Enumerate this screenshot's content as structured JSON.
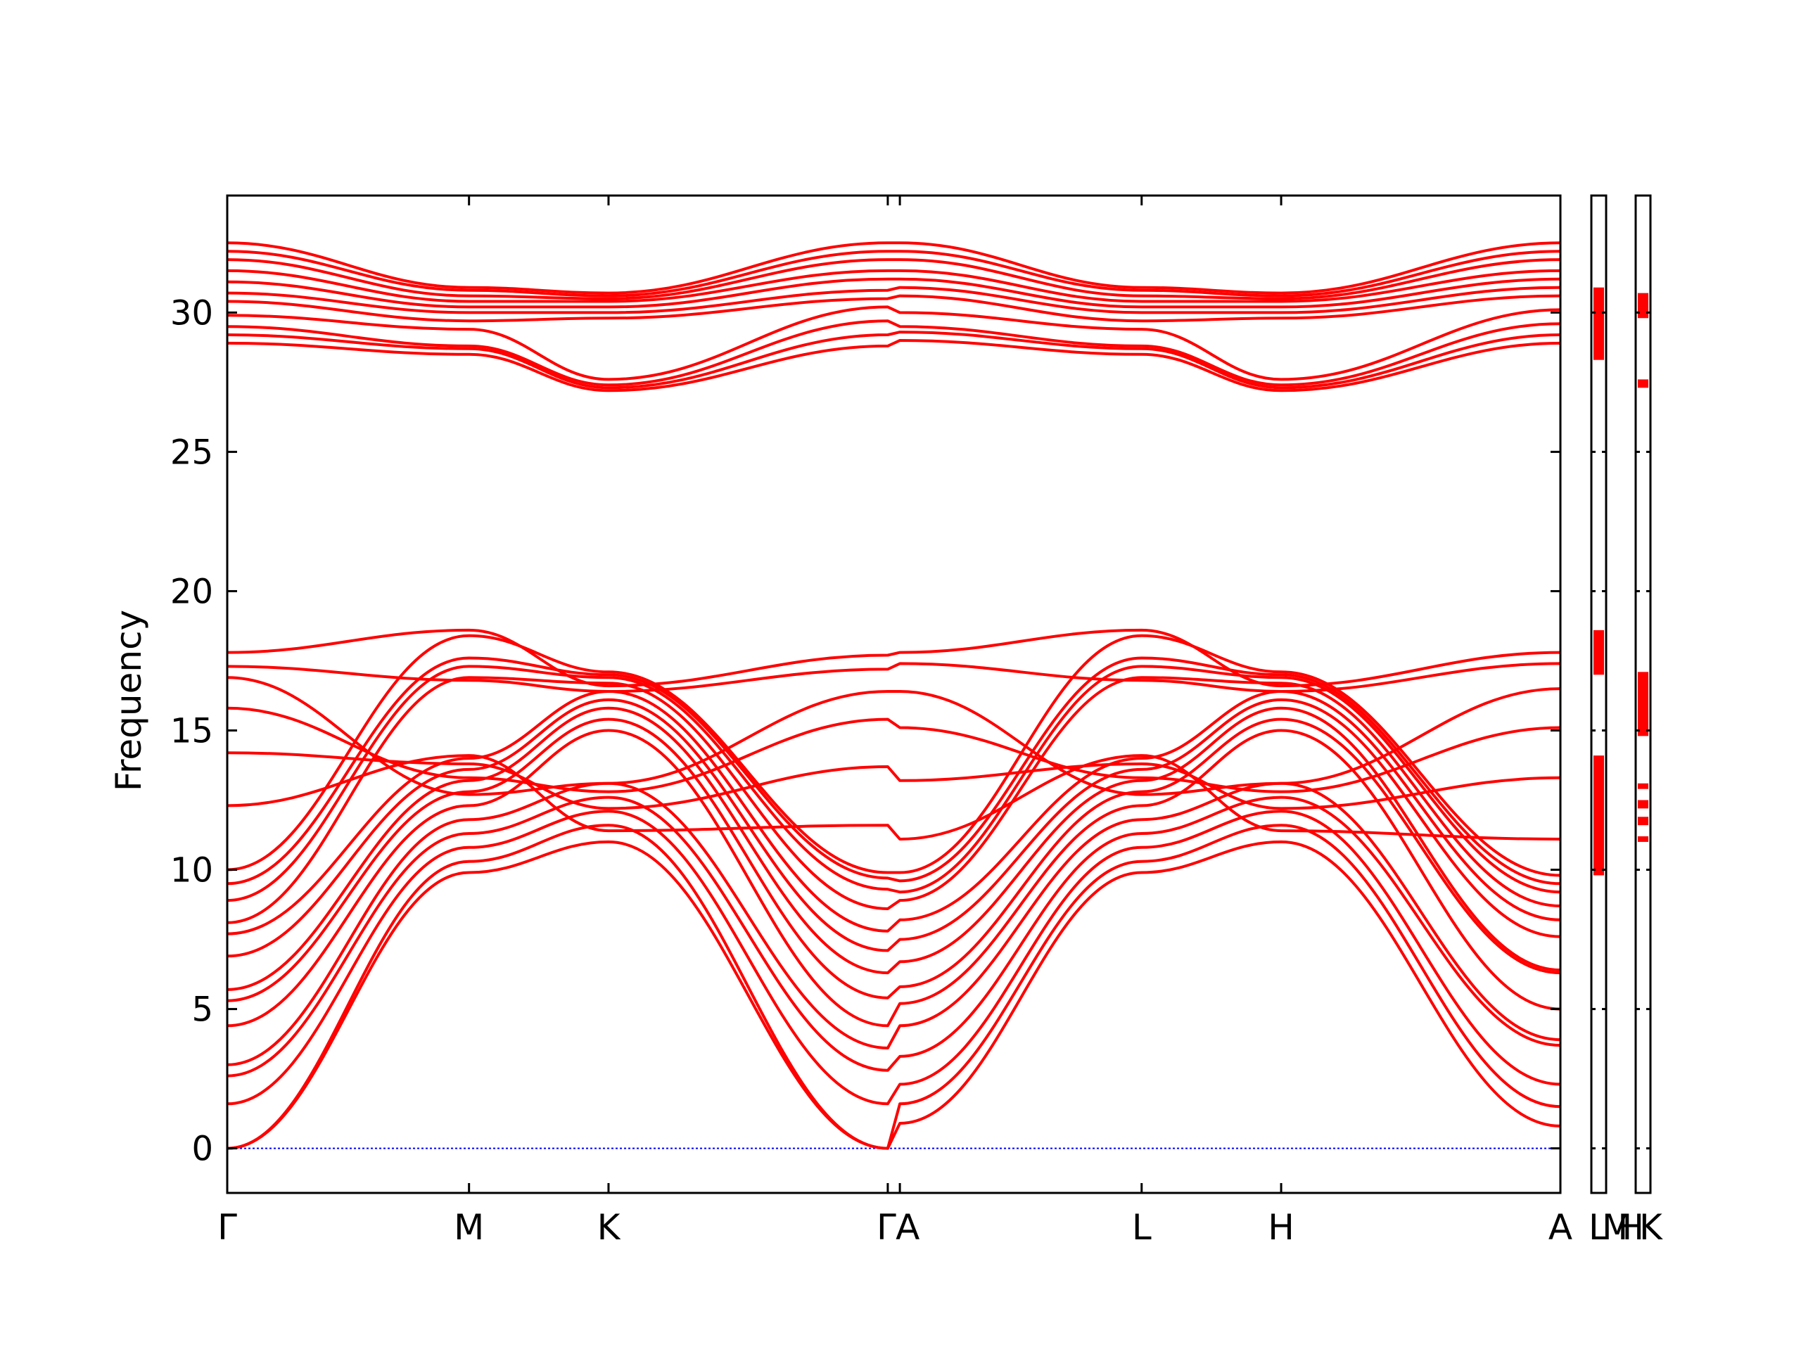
{
  "chart_data": {
    "type": "line",
    "ylabel": "Frequency",
    "ylim": [
      -1.6,
      34.2
    ],
    "yticks": [
      0,
      5,
      10,
      15,
      20,
      25,
      30
    ],
    "line_color": "#ff0000",
    "zero_line_color": "#0000ff",
    "grid": false,
    "legend": "none",
    "x_path_labels": [
      "Γ",
      "M",
      "K",
      "Γ",
      "A",
      "L",
      "H",
      "A",
      "L",
      "M",
      "H",
      "K"
    ],
    "segments": [
      {
        "from": "Γ",
        "to": "M",
        "length": 1.0
      },
      {
        "from": "M",
        "to": "K",
        "length": 0.577
      },
      {
        "from": "K",
        "to": "Γ",
        "length": 1.155
      },
      {
        "from": "Γ",
        "to": "A",
        "length": 0.05
      },
      {
        "from": "A",
        "to": "L",
        "length": 1.0
      },
      {
        "from": "L",
        "to": "H",
        "length": 0.577
      },
      {
        "from": "H",
        "to": "A",
        "length": 1.155
      },
      {
        "from": "L",
        "to": "M",
        "length": 0.05
      },
      {
        "from": "H",
        "to": "K",
        "length": 0.05
      }
    ],
    "series": [
      {
        "group": "acoustic",
        "points": [
          [
            0,
            0
          ],
          [
            1.0,
            9.9
          ],
          [
            1.577,
            11.0
          ],
          [
            2.732,
            0
          ],
          [
            2.782,
            0.9
          ],
          [
            3.782,
            9.9
          ],
          [
            4.359,
            11.0
          ],
          [
            5.514,
            0.8
          ]
        ]
      },
      {
        "group": "acoustic",
        "points": [
          [
            0,
            0
          ],
          [
            1.0,
            10.3
          ],
          [
            1.577,
            11.6
          ],
          [
            2.732,
            0
          ],
          [
            2.782,
            1.6
          ],
          [
            3.782,
            10.3
          ],
          [
            4.359,
            11.6
          ],
          [
            5.514,
            1.5
          ]
        ]
      },
      {
        "group": "acoustic",
        "points": [
          [
            0,
            1.6
          ],
          [
            1.0,
            10.8
          ],
          [
            1.577,
            12.1
          ],
          [
            2.732,
            1.6
          ],
          [
            2.782,
            2.3
          ],
          [
            3.782,
            10.8
          ],
          [
            4.359,
            12.1
          ],
          [
            5.514,
            2.3
          ]
        ]
      },
      {
        "group": "acoustic",
        "points": [
          [
            0,
            2.6
          ],
          [
            1.0,
            11.3
          ],
          [
            1.577,
            12.6
          ],
          [
            2.732,
            2.8
          ],
          [
            2.782,
            3.3
          ],
          [
            3.782,
            11.3
          ],
          [
            4.359,
            12.6
          ],
          [
            5.514,
            3.7
          ]
        ]
      },
      {
        "group": "acoustic",
        "points": [
          [
            0,
            3.0
          ],
          [
            1.0,
            11.8
          ],
          [
            1.577,
            13.1
          ],
          [
            2.732,
            3.6
          ],
          [
            2.782,
            4.4
          ],
          [
            3.782,
            11.8
          ],
          [
            4.359,
            13.1
          ],
          [
            5.514,
            3.9
          ]
        ]
      },
      {
        "group": "acoustic",
        "points": [
          [
            0,
            4.4
          ],
          [
            1.0,
            12.3
          ],
          [
            1.577,
            15.0
          ],
          [
            2.732,
            4.4
          ],
          [
            2.782,
            5.2
          ],
          [
            3.782,
            12.3
          ],
          [
            4.359,
            15.0
          ],
          [
            5.514,
            5.0
          ]
        ]
      },
      {
        "group": "acoustic",
        "points": [
          [
            0,
            5.3
          ],
          [
            1.0,
            12.8
          ],
          [
            1.577,
            15.4
          ],
          [
            2.732,
            5.4
          ],
          [
            2.782,
            5.8
          ],
          [
            3.782,
            12.8
          ],
          [
            4.359,
            15.4
          ],
          [
            5.514,
            6.3
          ]
        ]
      },
      {
        "group": "acoustic",
        "points": [
          [
            0,
            5.7
          ],
          [
            1.0,
            13.2
          ],
          [
            1.577,
            15.8
          ],
          [
            2.732,
            6.3
          ],
          [
            2.782,
            6.7
          ],
          [
            3.782,
            13.2
          ],
          [
            4.359,
            15.8
          ],
          [
            5.514,
            6.4
          ]
        ]
      },
      {
        "group": "acoustic",
        "points": [
          [
            0,
            6.9
          ],
          [
            1.0,
            13.6
          ],
          [
            1.577,
            16.1
          ],
          [
            2.732,
            7.1
          ],
          [
            2.782,
            7.5
          ],
          [
            3.782,
            13.6
          ],
          [
            4.359,
            16.1
          ],
          [
            5.514,
            7.6
          ]
        ]
      },
      {
        "group": "acoustic",
        "points": [
          [
            0,
            7.7
          ],
          [
            1.0,
            14.0
          ],
          [
            1.577,
            16.4
          ],
          [
            2.732,
            7.8
          ],
          [
            2.782,
            8.2
          ],
          [
            3.782,
            14.0
          ],
          [
            4.359,
            16.4
          ],
          [
            5.514,
            8.2
          ]
        ]
      },
      {
        "group": "acoustic",
        "points": [
          [
            0,
            8.1
          ],
          [
            1.0,
            16.9
          ],
          [
            1.577,
            16.7
          ],
          [
            2.732,
            8.6
          ],
          [
            2.782,
            8.9
          ],
          [
            3.782,
            16.9
          ],
          [
            4.359,
            16.7
          ],
          [
            5.514,
            8.7
          ]
        ]
      },
      {
        "group": "acoustic",
        "points": [
          [
            0,
            8.9
          ],
          [
            1.0,
            17.3
          ],
          [
            1.577,
            16.9
          ],
          [
            2.732,
            9.3
          ],
          [
            2.782,
            9.2
          ],
          [
            3.782,
            17.3
          ],
          [
            4.359,
            16.9
          ],
          [
            5.514,
            9.2
          ]
        ]
      },
      {
        "group": "acoustic",
        "points": [
          [
            0,
            9.5
          ],
          [
            1.0,
            17.6
          ],
          [
            1.577,
            17.0
          ],
          [
            2.732,
            9.7
          ],
          [
            2.782,
            9.6
          ],
          [
            3.782,
            17.6
          ],
          [
            4.359,
            17.0
          ],
          [
            5.514,
            9.5
          ]
        ]
      },
      {
        "group": "acoustic",
        "points": [
          [
            0,
            10.0
          ],
          [
            1.0,
            18.4
          ],
          [
            1.577,
            17.1
          ],
          [
            2.732,
            9.9
          ],
          [
            2.782,
            9.9
          ],
          [
            3.782,
            18.4
          ],
          [
            4.359,
            17.1
          ],
          [
            5.514,
            9.8
          ]
        ]
      },
      {
        "group": "optical-mid",
        "points": [
          [
            0,
            12.3
          ],
          [
            1.0,
            14.1
          ],
          [
            1.577,
            11.4
          ],
          [
            2.732,
            11.6
          ],
          [
            2.782,
            11.1
          ],
          [
            3.782,
            14.1
          ],
          [
            4.359,
            11.4
          ],
          [
            5.514,
            11.1
          ]
        ]
      },
      {
        "group": "optical-mid",
        "points": [
          [
            0,
            14.2
          ],
          [
            1.0,
            13.8
          ],
          [
            1.577,
            12.2
          ],
          [
            2.732,
            13.7
          ],
          [
            2.782,
            13.2
          ],
          [
            3.782,
            13.8
          ],
          [
            4.359,
            12.2
          ],
          [
            5.514,
            13.3
          ]
        ]
      },
      {
        "group": "optical-mid",
        "points": [
          [
            0,
            15.8
          ],
          [
            1.0,
            13.3
          ],
          [
            1.577,
            12.8
          ],
          [
            2.732,
            15.4
          ],
          [
            2.782,
            15.1
          ],
          [
            3.782,
            13.3
          ],
          [
            4.359,
            12.8
          ],
          [
            5.514,
            15.1
          ]
        ]
      },
      {
        "group": "optical-mid",
        "points": [
          [
            0,
            16.9
          ],
          [
            1.0,
            12.7
          ],
          [
            1.577,
            13.1
          ],
          [
            2.732,
            16.4
          ],
          [
            2.782,
            16.4
          ],
          [
            3.782,
            12.7
          ],
          [
            4.359,
            13.1
          ],
          [
            5.514,
            16.5
          ]
        ]
      },
      {
        "group": "optical-mid",
        "points": [
          [
            0,
            17.3
          ],
          [
            1.0,
            16.8
          ],
          [
            1.577,
            16.4
          ],
          [
            2.732,
            17.2
          ],
          [
            2.782,
            17.4
          ],
          [
            3.782,
            16.8
          ],
          [
            4.359,
            16.4
          ],
          [
            5.514,
            17.4
          ]
        ]
      },
      {
        "group": "optical-mid",
        "points": [
          [
            0,
            17.8
          ],
          [
            1.0,
            18.6
          ],
          [
            1.577,
            16.6
          ],
          [
            2.732,
            17.7
          ],
          [
            2.782,
            17.8
          ],
          [
            3.782,
            18.6
          ],
          [
            4.359,
            16.6
          ],
          [
            5.514,
            17.8
          ]
        ]
      },
      {
        "group": "optical-high",
        "points": [
          [
            0,
            28.9
          ],
          [
            1.0,
            28.5
          ],
          [
            1.577,
            27.2
          ],
          [
            2.732,
            28.8
          ],
          [
            2.782,
            29.0
          ],
          [
            3.782,
            28.5
          ],
          [
            4.359,
            27.2
          ],
          [
            5.514,
            28.9
          ]
        ]
      },
      {
        "group": "optical-high",
        "points": [
          [
            0,
            29.2
          ],
          [
            1.0,
            28.7
          ],
          [
            1.577,
            27.3
          ],
          [
            2.732,
            29.2
          ],
          [
            2.782,
            29.3
          ],
          [
            3.782,
            28.7
          ],
          [
            4.359,
            27.3
          ],
          [
            5.514,
            29.2
          ]
        ]
      },
      {
        "group": "optical-high",
        "points": [
          [
            0,
            29.5
          ],
          [
            1.0,
            28.8
          ],
          [
            1.577,
            27.4
          ],
          [
            2.732,
            29.7
          ],
          [
            2.782,
            29.5
          ],
          [
            3.782,
            28.8
          ],
          [
            4.359,
            27.4
          ],
          [
            5.514,
            29.6
          ]
        ]
      },
      {
        "group": "optical-high",
        "points": [
          [
            0,
            29.9
          ],
          [
            1.0,
            29.4
          ],
          [
            1.577,
            27.6
          ],
          [
            2.732,
            30.2
          ],
          [
            2.782,
            30.0
          ],
          [
            3.782,
            29.4
          ],
          [
            4.359,
            27.6
          ],
          [
            5.514,
            30.1
          ]
        ]
      },
      {
        "group": "optical-high",
        "points": [
          [
            0,
            30.4
          ],
          [
            1.0,
            29.7
          ],
          [
            1.577,
            29.8
          ],
          [
            2.732,
            30.5
          ],
          [
            2.782,
            30.6
          ],
          [
            3.782,
            29.7
          ],
          [
            4.359,
            29.8
          ],
          [
            5.514,
            30.6
          ]
        ]
      },
      {
        "group": "optical-high",
        "points": [
          [
            0,
            30.7
          ],
          [
            1.0,
            30.0
          ],
          [
            1.577,
            30.0
          ],
          [
            2.732,
            30.8
          ],
          [
            2.782,
            30.9
          ],
          [
            3.782,
            30.0
          ],
          [
            4.359,
            30.0
          ],
          [
            5.514,
            30.9
          ]
        ]
      },
      {
        "group": "optical-high",
        "points": [
          [
            0,
            31.1
          ],
          [
            1.0,
            30.2
          ],
          [
            1.577,
            30.2
          ],
          [
            2.732,
            31.2
          ],
          [
            2.782,
            31.2
          ],
          [
            3.782,
            30.2
          ],
          [
            4.359,
            30.2
          ],
          [
            5.514,
            31.2
          ]
        ]
      },
      {
        "group": "optical-high",
        "points": [
          [
            0,
            31.5
          ],
          [
            1.0,
            30.4
          ],
          [
            1.577,
            30.4
          ],
          [
            2.732,
            31.5
          ],
          [
            2.782,
            31.5
          ],
          [
            3.782,
            30.4
          ],
          [
            4.359,
            30.4
          ],
          [
            5.514,
            31.5
          ]
        ]
      },
      {
        "group": "optical-high",
        "points": [
          [
            0,
            31.9
          ],
          [
            1.0,
            30.6
          ],
          [
            1.577,
            30.5
          ],
          [
            2.732,
            31.9
          ],
          [
            2.782,
            31.9
          ],
          [
            3.782,
            30.6
          ],
          [
            4.359,
            30.5
          ],
          [
            5.514,
            31.9
          ]
        ]
      },
      {
        "group": "optical-high",
        "points": [
          [
            0,
            32.2
          ],
          [
            1.0,
            30.8
          ],
          [
            1.577,
            30.6
          ],
          [
            2.732,
            32.2
          ],
          [
            2.782,
            32.2
          ],
          [
            3.782,
            30.8
          ],
          [
            4.359,
            30.6
          ],
          [
            5.514,
            32.2
          ]
        ]
      },
      {
        "group": "optical-high",
        "points": [
          [
            0,
            32.5
          ],
          [
            1.0,
            30.9
          ],
          [
            1.577,
            30.7
          ],
          [
            2.732,
            32.5
          ],
          [
            2.782,
            32.5
          ],
          [
            3.782,
            30.9
          ],
          [
            4.359,
            30.7
          ],
          [
            5.514,
            32.5
          ]
        ]
      }
    ],
    "side_panels": [
      {
        "label_pair": "L–M",
        "bands": [
          [
            28.3,
            30.9
          ],
          [
            17.0,
            18.6
          ],
          [
            9.8,
            14.1
          ]
        ]
      },
      {
        "label_pair": "H–K",
        "bands": [
          [
            29.8,
            30.7
          ],
          [
            27.3,
            27.6
          ],
          [
            14.8,
            17.1
          ],
          [
            12.9,
            13.1
          ],
          [
            12.2,
            12.5
          ],
          [
            11.6,
            11.9
          ],
          [
            11.0,
            11.2
          ]
        ]
      }
    ]
  }
}
